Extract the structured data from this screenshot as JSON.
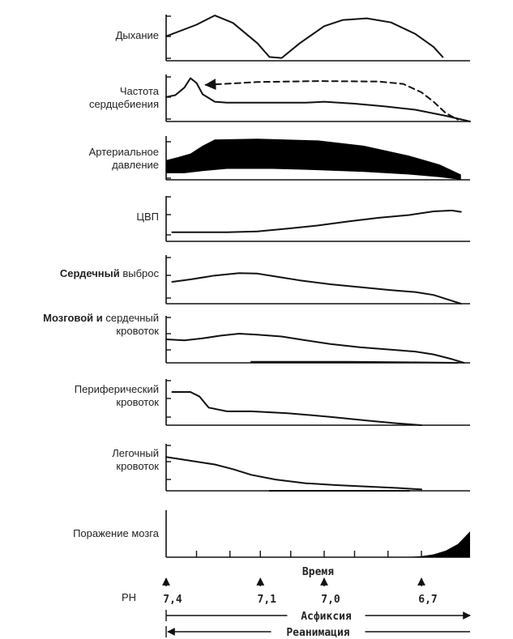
{
  "chart_data": {
    "type": "line",
    "x_domain": [
      0,
      100
    ],
    "panels": [
      {
        "key": "breathing",
        "label_lines": [
          [
            "Дыхание"
          ]
        ],
        "series": [
          {
            "style": "solid",
            "points": [
              [
                0,
                53
              ],
              [
                10,
                78
              ],
              [
                16,
                98
              ],
              [
                22,
                82
              ],
              [
                30,
                38
              ],
              [
                34,
                8
              ],
              [
                38,
                6
              ],
              [
                44,
                38
              ],
              [
                52,
                75
              ],
              [
                58,
                88
              ],
              [
                66,
                92
              ],
              [
                74,
                83
              ],
              [
                82,
                58
              ],
              [
                88,
                30
              ],
              [
                91,
                8
              ]
            ]
          }
        ]
      },
      {
        "key": "heart_rate",
        "label_lines": [
          [
            "Частота"
          ],
          [
            "сердцебиения"
          ]
        ],
        "series": [
          {
            "style": "solid",
            "points": [
              [
                0,
                52
              ],
              [
                3,
                56
              ],
              [
                6,
                72
              ],
              [
                8,
                92
              ],
              [
                10,
                82
              ],
              [
                12,
                58
              ],
              [
                16,
                42
              ],
              [
                20,
                40
              ],
              [
                46,
                40
              ],
              [
                52,
                42
              ],
              [
                62,
                38
              ],
              [
                72,
                32
              ],
              [
                82,
                25
              ],
              [
                92,
                12
              ],
              [
                100,
                0
              ]
            ]
          },
          {
            "style": "dashed",
            "arrow_start": true,
            "points": [
              [
                13,
                78
              ],
              [
                30,
                84
              ],
              [
                50,
                86
              ],
              [
                70,
                85
              ],
              [
                78,
                80
              ],
              [
                84,
                62
              ],
              [
                88,
                42
              ],
              [
                92,
                18
              ],
              [
                96,
                4
              ]
            ]
          }
        ]
      },
      {
        "key": "arterial_pressure",
        "label_lines": [
          [
            "Артериальное"
          ],
          [
            "давление"
          ]
        ],
        "series": [
          {
            "style": "band",
            "upper": [
              [
                0,
                45
              ],
              [
                4,
                52
              ],
              [
                8,
                60
              ],
              [
                12,
                78
              ],
              [
                16,
                92
              ],
              [
                30,
                94
              ],
              [
                50,
                90
              ],
              [
                65,
                78
              ],
              [
                80,
                55
              ],
              [
                90,
                35
              ],
              [
                97,
                12
              ]
            ],
            "lower": [
              [
                0,
                15
              ],
              [
                6,
                15
              ],
              [
                12,
                20
              ],
              [
                20,
                25
              ],
              [
                35,
                25
              ],
              [
                50,
                22
              ],
              [
                65,
                18
              ],
              [
                80,
                12
              ],
              [
                90,
                6
              ],
              [
                97,
                0
              ]
            ]
          }
        ]
      },
      {
        "key": "cvp",
        "label_lines": [
          [
            "ЦВП"
          ]
        ],
        "series": [
          {
            "style": "solid",
            "points": [
              [
                2,
                20
              ],
              [
                10,
                20
              ],
              [
                20,
                20
              ],
              [
                30,
                22
              ],
              [
                40,
                28
              ],
              [
                50,
                35
              ],
              [
                60,
                44
              ],
              [
                70,
                52
              ],
              [
                80,
                58
              ],
              [
                88,
                66
              ],
              [
                94,
                68
              ],
              [
                97,
                65
              ]
            ]
          }
        ]
      },
      {
        "key": "cardiac_output",
        "label_lines": [
          [
            "Сердечный",
            "bold"
          ],
          [
            " выброс",
            "normal"
          ]
        ],
        "series": [
          {
            "style": "solid",
            "points": [
              [
                2,
                45
              ],
              [
                8,
                50
              ],
              [
                16,
                58
              ],
              [
                24,
                63
              ],
              [
                30,
                62
              ],
              [
                36,
                56
              ],
              [
                44,
                48
              ],
              [
                54,
                40
              ],
              [
                64,
                34
              ],
              [
                74,
                28
              ],
              [
                82,
                24
              ],
              [
                88,
                18
              ],
              [
                93,
                8
              ],
              [
                97,
                0
              ]
            ]
          }
        ]
      },
      {
        "key": "brain_heart_flow",
        "label_lines": [
          [
            "Мозговой и",
            "bold"
          ],
          [
            " сердечный",
            "normal"
          ],
          [
            "кровоток"
          ]
        ],
        "series": [
          {
            "style": "solid",
            "points": [
              [
                0,
                50
              ],
              [
                6,
                48
              ],
              [
                12,
                52
              ],
              [
                18,
                58
              ],
              [
                24,
                62
              ],
              [
                30,
                60
              ],
              [
                38,
                56
              ],
              [
                46,
                48
              ],
              [
                54,
                40
              ],
              [
                64,
                33
              ],
              [
                74,
                28
              ],
              [
                82,
                24
              ],
              [
                88,
                18
              ],
              [
                94,
                8
              ],
              [
                98,
                0
              ]
            ]
          },
          {
            "style": "solid",
            "points": [
              [
                28,
                2
              ],
              [
                60,
                2
              ],
              [
                80,
                1
              ],
              [
                96,
                0
              ]
            ]
          }
        ]
      },
      {
        "key": "peripheral_flow",
        "label_lines": [
          [
            "Периферический"
          ],
          [
            "кровоток"
          ]
        ],
        "series": [
          {
            "style": "solid",
            "points": [
              [
                2,
                72
              ],
              [
                8,
                72
              ],
              [
                11,
                62
              ],
              [
                14,
                38
              ],
              [
                20,
                30
              ],
              [
                28,
                30
              ],
              [
                40,
                26
              ],
              [
                54,
                18
              ],
              [
                66,
                10
              ],
              [
                76,
                4
              ],
              [
                84,
                0
              ]
            ]
          }
        ]
      },
      {
        "key": "pulmonary_flow",
        "label_lines": [
          [
            "Легочный"
          ],
          [
            "кровоток"
          ]
        ],
        "series": [
          {
            "style": "solid",
            "points": [
              [
                0,
                72
              ],
              [
                8,
                64
              ],
              [
                16,
                56
              ],
              [
                22,
                46
              ],
              [
                28,
                34
              ],
              [
                36,
                24
              ],
              [
                46,
                16
              ],
              [
                56,
                12
              ],
              [
                66,
                9
              ],
              [
                76,
                6
              ],
              [
                84,
                3
              ]
            ]
          },
          {
            "style": "solid",
            "points": [
              [
                34,
                0
              ],
              [
                80,
                0
              ]
            ]
          }
        ]
      },
      {
        "key": "brain_damage",
        "label_lines": [
          [
            "Поражение мозга"
          ]
        ],
        "series": [
          {
            "style": "area",
            "points": [
              [
                78,
                0
              ],
              [
                84,
                2
              ],
              [
                88,
                6
              ],
              [
                92,
                14
              ],
              [
                96,
                28
              ],
              [
                100,
                55
              ]
            ]
          }
        ]
      }
    ],
    "x_axis_label": "Время",
    "ph": {
      "label": "PH",
      "ticks": [
        {
          "x": 0,
          "text": "7,4"
        },
        {
          "x": 31,
          "text": "7,1"
        },
        {
          "x": 52,
          "text": "7,0"
        },
        {
          "x": 84,
          "text": "6,7"
        }
      ]
    },
    "arrows": [
      {
        "label": "Асфиксия",
        "direction": "right"
      },
      {
        "label": "Реанимация",
        "direction": "left"
      }
    ]
  }
}
